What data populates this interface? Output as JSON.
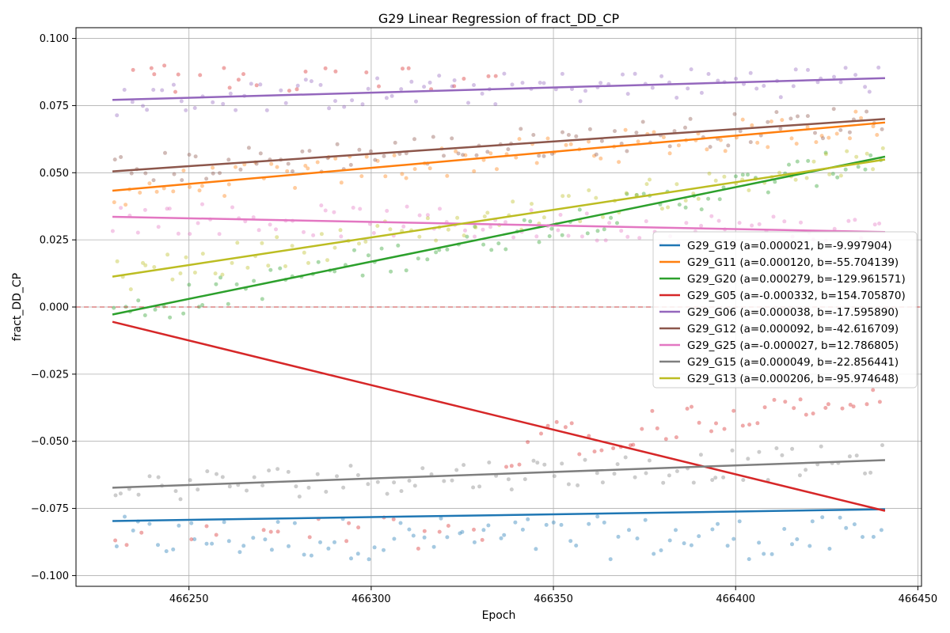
{
  "chart_data": {
    "type": "scatter",
    "title": "G29 Linear Regression of fract_DD_CP",
    "xlabel": "Epoch",
    "ylabel": "fract_DD_CP",
    "xlim": [
      466219,
      466451
    ],
    "ylim": [
      -0.104,
      0.104
    ],
    "x_ticks": [
      466250,
      466300,
      466350,
      466400,
      466450
    ],
    "y_ticks": [
      -0.1,
      -0.075,
      -0.05,
      -0.025,
      0.0,
      0.025,
      0.05,
      0.075,
      0.1
    ],
    "x_tick_labels": [
      "466250",
      "466300",
      "466350",
      "466400",
      "466450"
    ],
    "y_tick_labels": [
      "−0.100",
      "−0.075",
      "−0.050",
      "−0.025",
      "0.000",
      "0.025",
      "0.050",
      "0.075",
      "0.100"
    ],
    "grid": true,
    "legend_position": "center-right",
    "reference_line": {
      "y": 0.0,
      "color": "#d62728",
      "style": "dashed"
    },
    "x_range_data": [
      466229,
      466441
    ],
    "series": [
      {
        "name": "G29_G19",
        "label": "G29_G19 (a=0.000021, b=-9.997904)",
        "color": "#1f77b4",
        "a": 2.1e-05,
        "fit_start": -0.0797,
        "fit_end": -0.0753,
        "scatter_range": [
          -0.094,
          -0.077
        ]
      },
      {
        "name": "G29_G11",
        "label": "G29_G11 (a=0.000120, b=-55.704139)",
        "color": "#ff7f0e",
        "a": 0.00012,
        "fit_start": 0.0433,
        "fit_end": 0.0687,
        "scatter_range": [
          0.04,
          0.072
        ]
      },
      {
        "name": "G29_G20",
        "label": "G29_G20 (a=0.000279, b=-129.961571)",
        "color": "#2ca02c",
        "a": 0.000279,
        "fit_start": -0.0028,
        "fit_end": 0.056,
        "scatter_range": [
          -0.005,
          0.06
        ]
      },
      {
        "name": "G29_G05",
        "label": "G29_G05 (a=-0.000332, b=154.705870)",
        "color": "#d62728",
        "a": -0.000332,
        "fit_start": -0.0055,
        "fit_end": -0.0759,
        "scatter_range": [
          -0.095,
          0.095
        ]
      },
      {
        "name": "G29_G06",
        "label": "G29_G06 (a=0.000038, b=-17.595890)",
        "color": "#9467bd",
        "a": 3.8e-05,
        "fit_start": 0.0771,
        "fit_end": 0.0852,
        "scatter_range": [
          0.075,
          0.095
        ]
      },
      {
        "name": "G29_G12",
        "label": "G29_G12 (a=0.000092, b=-42.616709)",
        "color": "#8c564b",
        "a": 9.2e-05,
        "fit_start": 0.0505,
        "fit_end": 0.07,
        "scatter_range": [
          0.045,
          0.075
        ]
      },
      {
        "name": "G29_G25",
        "label": "G29_G25 (a=-0.000027, b=12.786805)",
        "color": "#e377c2",
        "a": -2.7e-05,
        "fit_start": 0.0336,
        "fit_end": 0.0279,
        "scatter_range": [
          0.02,
          0.045
        ]
      },
      {
        "name": "G29_G15",
        "label": "G29_G15 (a=0.000049, b=-22.856441)",
        "color": "#7f7f7f",
        "a": 4.9e-05,
        "fit_start": -0.0673,
        "fit_end": -0.057,
        "scatter_range": [
          -0.073,
          -0.054
        ]
      },
      {
        "name": "G29_G13",
        "label": "G29_G13 (a=0.000206, b=-95.974648)",
        "color": "#bcbd22",
        "a": 0.000206,
        "fit_start": 0.0113,
        "fit_end": 0.0549,
        "scatter_range": [
          0.005,
          0.06
        ]
      }
    ]
  }
}
